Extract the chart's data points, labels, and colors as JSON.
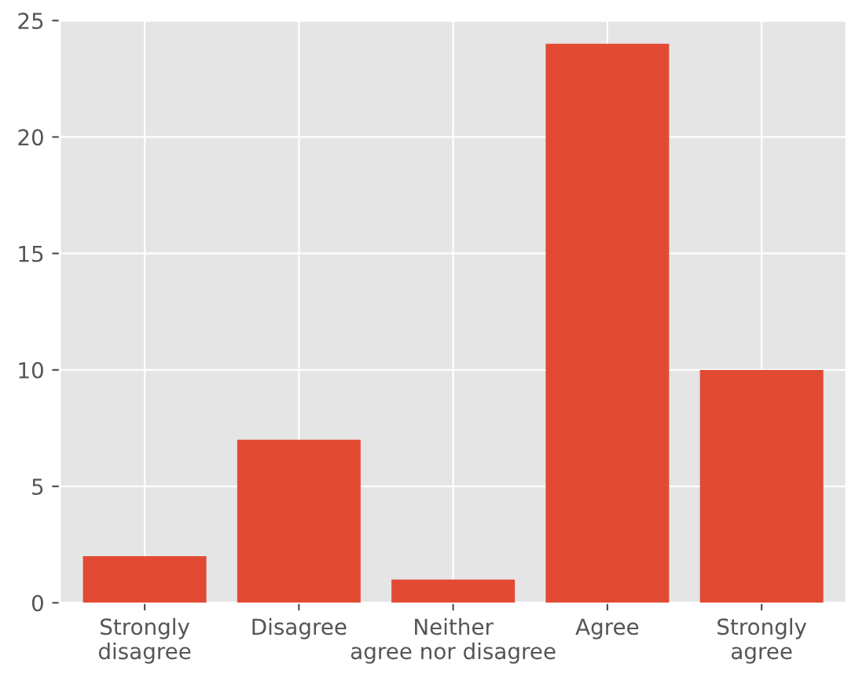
{
  "chart_data": {
    "type": "bar",
    "categories": [
      "Strongly\ndisagree",
      "Disagree",
      "Neither\nagree nor disagree",
      "Agree",
      "Strongly\nagree"
    ],
    "values": [
      2,
      7,
      1,
      24,
      10
    ],
    "color": "#e24a33",
    "ylim": [
      0,
      25
    ],
    "yticks": [
      0,
      5,
      10,
      15,
      20,
      25
    ],
    "grid": true
  }
}
